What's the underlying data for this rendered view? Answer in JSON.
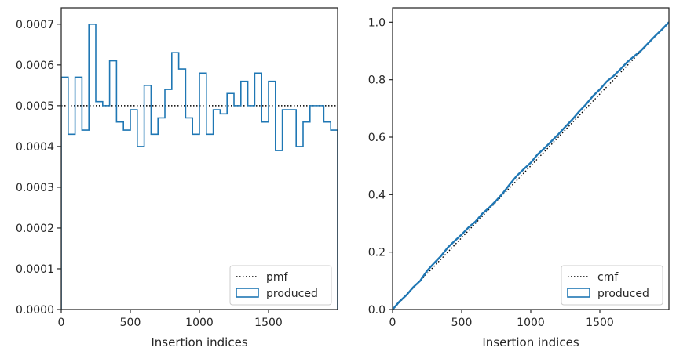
{
  "chart_data": [
    {
      "type": "step-histogram",
      "xlabel": "Insertion indices",
      "ylabel": "",
      "xlim": [
        0,
        2000
      ],
      "ylim": [
        0,
        0.00074
      ],
      "xticks": [
        0,
        500,
        1000,
        1500
      ],
      "xtick_labels": [
        "0",
        "500",
        "1000",
        "1500"
      ],
      "yticks": [
        0,
        0.0001,
        0.0002,
        0.0003,
        0.0004,
        0.0005,
        0.0006,
        0.0007
      ],
      "ytick_labels": [
        "0.0000",
        "0.0001",
        "0.0002",
        "0.0003",
        "0.0004",
        "0.0005",
        "0.0006",
        "0.0007"
      ],
      "grid": false,
      "legend": {
        "position": "bottom-right",
        "entries": [
          "pmf",
          "produced"
        ]
      },
      "series": [
        {
          "name": "pmf",
          "style": "dotted",
          "color": "#000000",
          "x": [
            0,
            2000
          ],
          "values": [
            0.0005,
            0.0005
          ]
        },
        {
          "name": "produced",
          "style": "step",
          "color": "#1f77b4",
          "bin_edges": [
            0,
            50,
            100,
            150,
            200,
            250,
            300,
            350,
            400,
            450,
            500,
            550,
            600,
            650,
            700,
            750,
            800,
            850,
            900,
            950,
            1000,
            1050,
            1100,
            1150,
            1200,
            1250,
            1300,
            1350,
            1400,
            1450,
            1500,
            1550,
            1600,
            1650,
            1700,
            1750,
            1800,
            1850,
            1900,
            1950,
            2000
          ],
          "values": [
            0.00057,
            0.00043,
            0.00057,
            0.00044,
            0.0007,
            0.00051,
            0.0005,
            0.00061,
            0.00046,
            0.00044,
            0.00049,
            0.0004,
            0.00055,
            0.00043,
            0.00047,
            0.00054,
            0.00063,
            0.00059,
            0.00047,
            0.00043,
            0.00058,
            0.00043,
            0.00049,
            0.00048,
            0.00053,
            0.0005,
            0.00056,
            0.0005,
            0.00058,
            0.00046,
            0.00056,
            0.00039,
            0.00049,
            0.00049,
            0.0004,
            0.00046,
            0.0005,
            0.0005,
            0.00046,
            0.00044
          ]
        }
      ]
    },
    {
      "type": "line",
      "xlabel": "Insertion indices",
      "ylabel": "",
      "xlim": [
        0,
        2000
      ],
      "ylim": [
        0,
        1.05
      ],
      "xticks": [
        0,
        500,
        1000,
        1500
      ],
      "xtick_labels": [
        "0",
        "500",
        "1000",
        "1500"
      ],
      "yticks": [
        0,
        0.2,
        0.4,
        0.6,
        0.8,
        1.0
      ],
      "ytick_labels": [
        "0.0",
        "0.2",
        "0.4",
        "0.6",
        "0.8",
        "1.0"
      ],
      "grid": false,
      "legend": {
        "position": "bottom-right",
        "entries": [
          "cmf",
          "produced"
        ]
      },
      "series": [
        {
          "name": "cmf",
          "style": "dotted",
          "color": "#000000",
          "x": [
            0,
            2000
          ],
          "values": [
            0,
            1.0
          ]
        },
        {
          "name": "produced",
          "style": "line",
          "color": "#1f77b4",
          "x": [
            0,
            50,
            100,
            150,
            200,
            250,
            300,
            350,
            400,
            450,
            500,
            550,
            600,
            650,
            700,
            750,
            800,
            850,
            900,
            950,
            1000,
            1050,
            1100,
            1150,
            1200,
            1250,
            1300,
            1350,
            1400,
            1450,
            1500,
            1550,
            1600,
            1650,
            1700,
            1750,
            1800,
            1850,
            1900,
            1950,
            2000
          ],
          "values": [
            0,
            0.028,
            0.05,
            0.078,
            0.1,
            0.135,
            0.161,
            0.186,
            0.216,
            0.239,
            0.261,
            0.286,
            0.306,
            0.334,
            0.355,
            0.379,
            0.406,
            0.437,
            0.466,
            0.489,
            0.511,
            0.54,
            0.562,
            0.586,
            0.61,
            0.636,
            0.661,
            0.689,
            0.714,
            0.743,
            0.766,
            0.794,
            0.813,
            0.837,
            0.862,
            0.882,
            0.902,
            0.927,
            0.952,
            0.975,
            1.0
          ]
        }
      ]
    }
  ]
}
